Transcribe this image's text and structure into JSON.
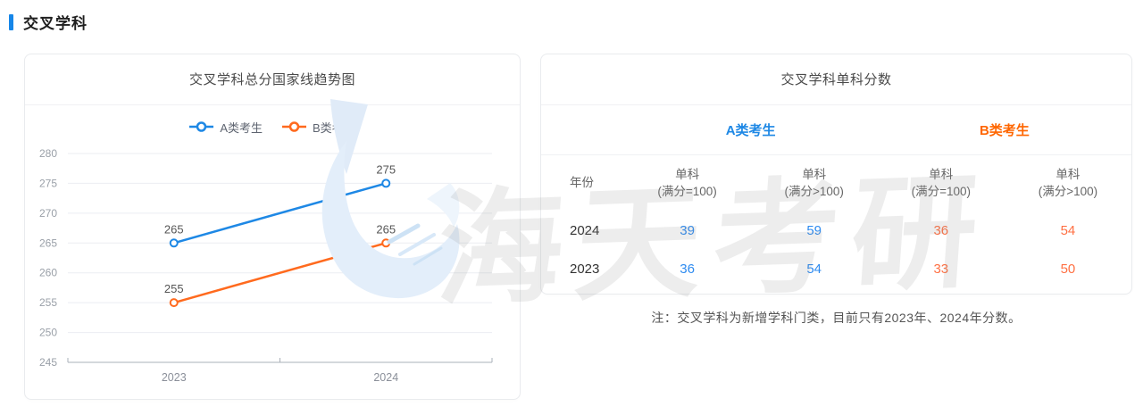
{
  "page": {
    "section_title": "交叉学科",
    "accent_color": "#1686e8"
  },
  "chart_panel": {
    "title": "交叉学科总分国家线趋势图"
  },
  "chart_data": {
    "type": "line",
    "title": "交叉学科总分国家线趋势图",
    "categories": [
      "2023",
      "2024"
    ],
    "series": [
      {
        "name": "A类考生",
        "values": [
          265,
          275
        ],
        "color": "#1e88e5"
      },
      {
        "name": "B类考生",
        "values": [
          255,
          265
        ],
        "color": "#ff6a1e"
      }
    ],
    "ylim": [
      245,
      280
    ],
    "ytick_step": 5,
    "grid": true,
    "legend_position": "top",
    "point_labels": true
  },
  "table_panel": {
    "title": "交叉学科单科分数",
    "group_headers": [
      {
        "label": "A类考生",
        "color": "#1e88e5"
      },
      {
        "label": "B类考生",
        "color": "#ff6600"
      }
    ],
    "columns": [
      {
        "line1": "年份",
        "line2": ""
      },
      {
        "line1": "单科",
        "line2": "(满分=100)"
      },
      {
        "line1": "单科",
        "line2": "(满分>100)"
      },
      {
        "line1": "单科",
        "line2": "(满分=100)"
      },
      {
        "line1": "单科",
        "line2": "(满分>100)"
      }
    ],
    "rows": [
      {
        "year": "2024",
        "values": [
          "39",
          "59",
          "36",
          "54"
        ]
      },
      {
        "year": "2023",
        "values": [
          "36",
          "54",
          "33",
          "50"
        ]
      }
    ],
    "value_colors": {
      "a": "#2e8bf0",
      "b": "#ff7043"
    },
    "note": "注：交叉学科为新增学科门类，目前只有2023年、2024年分数。"
  },
  "watermark": {
    "text": "海天考研"
  }
}
